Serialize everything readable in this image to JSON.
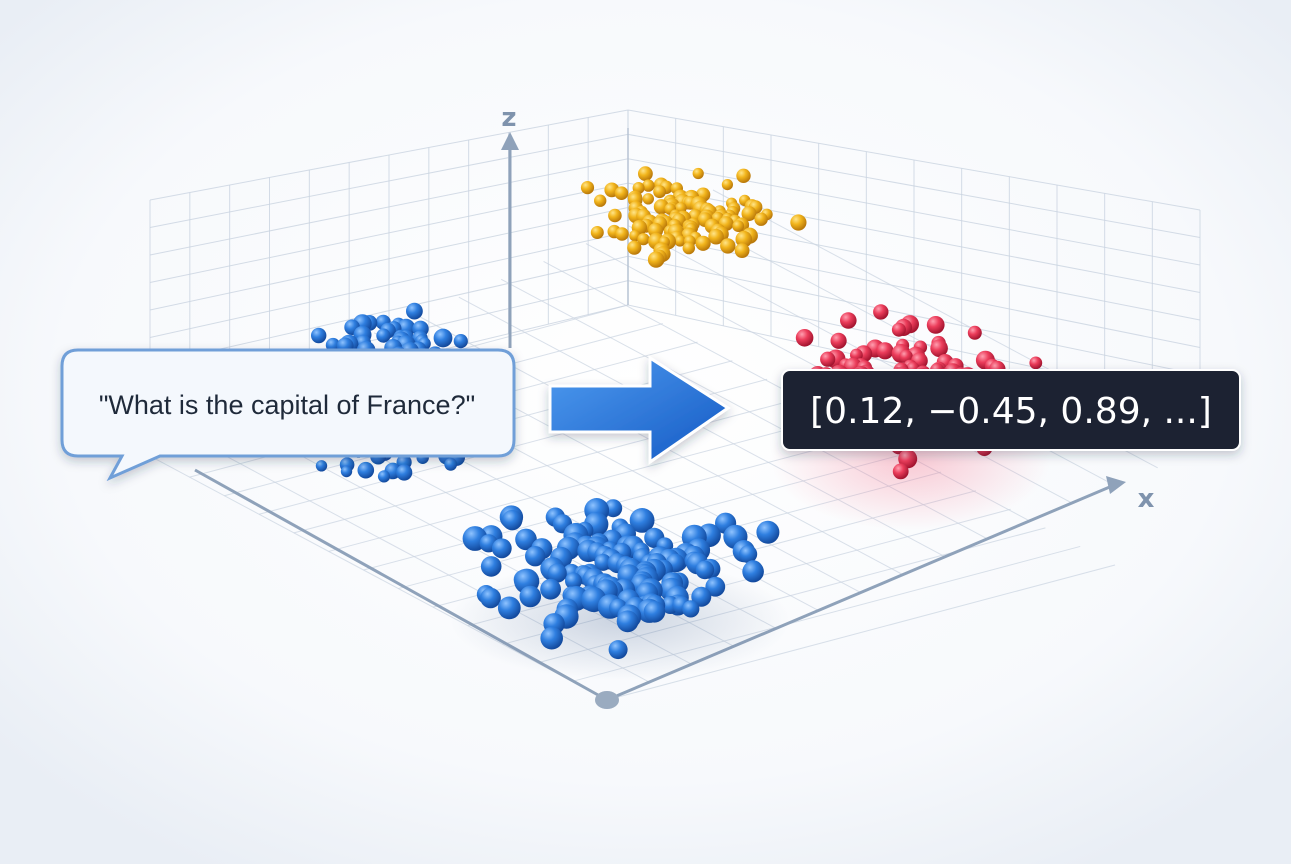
{
  "axes": {
    "z_label": "z",
    "x_label": "x"
  },
  "input_text": "\"What is the capital of France?\"",
  "embedding_text": "[0.12, −0.45, 0.89, ...]"
}
